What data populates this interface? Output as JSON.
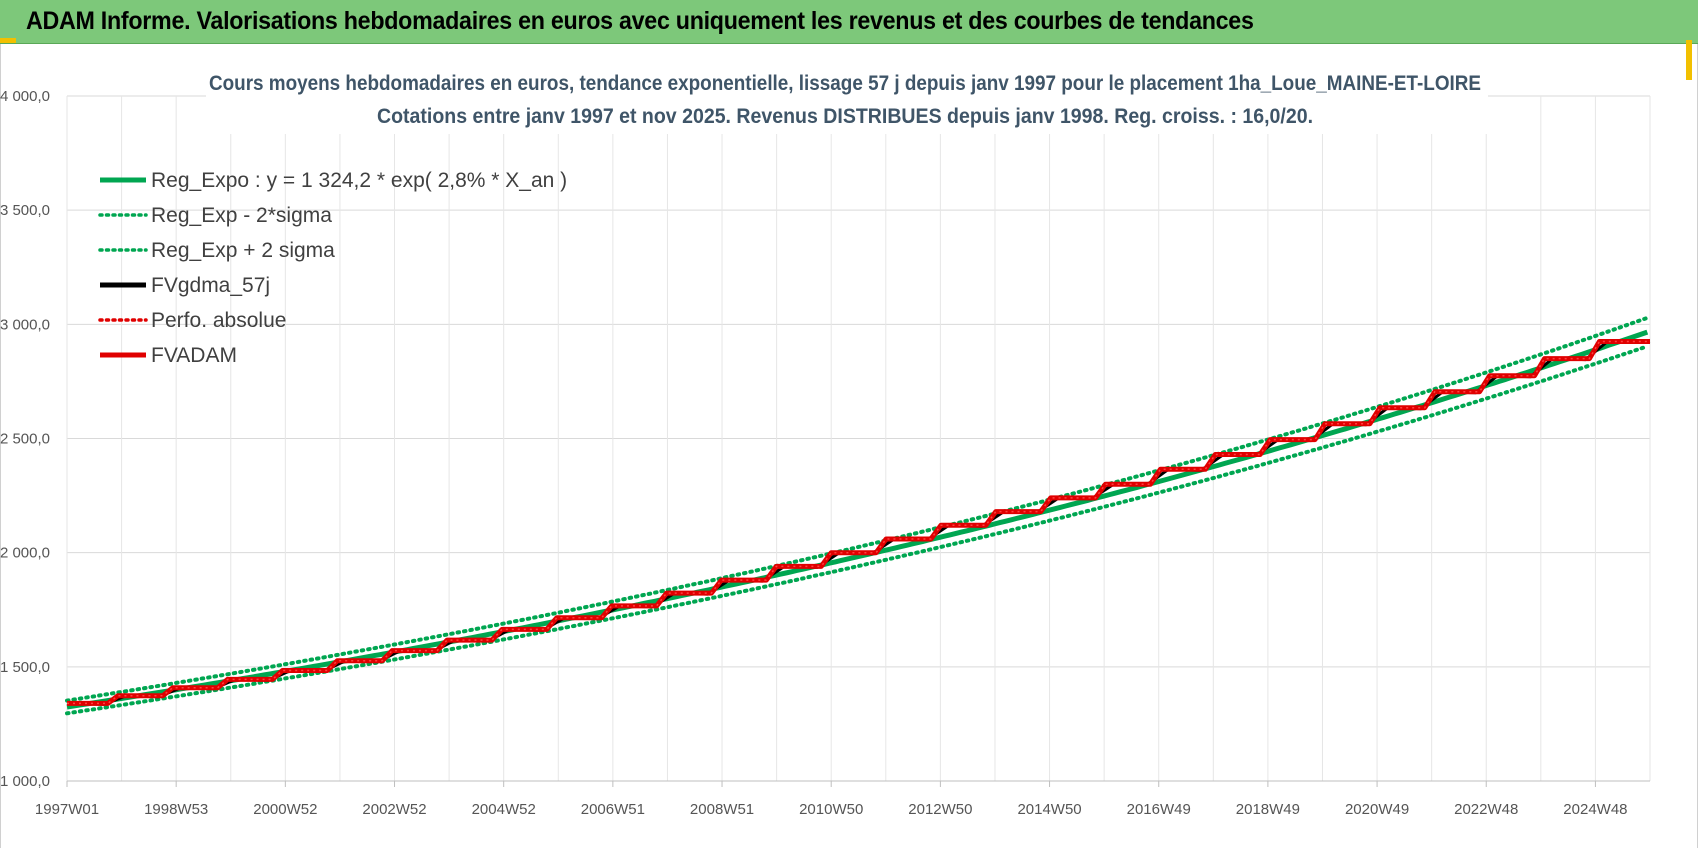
{
  "header": {
    "title": "ADAM Informe. Valorisations hebdomadaires en euros avec uniquement les revenus et des courbes de tendances"
  },
  "chart_data": {
    "type": "line",
    "title_line1": "Cours moyens hebdomadaires en euros, tendance exponentielle, lissage 57 j depuis janv 1997  pour le placement 1ha_Loue_MAINE-ET-LOIRE",
    "title_line2": "Cotations entre janv 1997 et nov 2025. Revenus  DISTRIBUES depuis janv 1998.  Reg. croiss. : 16,0/20.",
    "x_tick_labels": [
      "1997W01",
      "1998W53",
      "2000W52",
      "2002W52",
      "2004W52",
      "2006W51",
      "2008W51",
      "2010W50",
      "2012W50",
      "2014W50",
      "2016W49",
      "2018W49",
      "2020W49",
      "2022W48",
      "2024W48"
    ],
    "x_range_years": [
      1997.0,
      2025.85
    ],
    "ylim": [
      1000,
      4000
    ],
    "y_ticks": [
      1000,
      1500,
      2000,
      2500,
      3000,
      3500,
      4000
    ],
    "y_tick_labels": [
      "1 000,0",
      "1 500,0",
      "2 000,0",
      "2 500,0",
      "3 000,0",
      "3 500,0",
      "4 000,0"
    ],
    "grid": true,
    "legend_position": "top-left",
    "legend": [
      {
        "label": "Reg_Expo : y = 1 324,2 * exp( 2,8% *  X_an )",
        "color": "#00a651",
        "style": "solid"
      },
      {
        "label": "Reg_Exp - 2*sigma",
        "color": "#00a651",
        "style": "dotted"
      },
      {
        "label": "Reg_Exp + 2 sigma",
        "color": "#00a651",
        "style": "dotted"
      },
      {
        "label": "FVgdma_57j",
        "color": "#000000",
        "style": "solid"
      },
      {
        "label": "Perfo. absolue",
        "color": "#e00000",
        "style": "dotted"
      },
      {
        "label": "FVADAM",
        "color": "#e00000",
        "style": "solid"
      }
    ],
    "regression": {
      "a": 1324.2,
      "rate": 0.028
    },
    "sigma_band_factor": 0.021,
    "fvadam_steps": [
      {
        "year": 1997.0,
        "value": 1340
      },
      {
        "year": 1998.0,
        "value": 1373
      },
      {
        "year": 1999.0,
        "value": 1408
      },
      {
        "year": 2000.0,
        "value": 1445
      },
      {
        "year": 2001.0,
        "value": 1484
      },
      {
        "year": 2002.0,
        "value": 1527
      },
      {
        "year": 2003.0,
        "value": 1571
      },
      {
        "year": 2004.0,
        "value": 1617
      },
      {
        "year": 2005.0,
        "value": 1664
      },
      {
        "year": 2006.0,
        "value": 1715
      },
      {
        "year": 2007.0,
        "value": 1767
      },
      {
        "year": 2008.0,
        "value": 1823
      },
      {
        "year": 2009.0,
        "value": 1880
      },
      {
        "year": 2010.0,
        "value": 1940
      },
      {
        "year": 2011.0,
        "value": 2000
      },
      {
        "year": 2012.0,
        "value": 2060
      },
      {
        "year": 2013.0,
        "value": 2120
      },
      {
        "year": 2014.0,
        "value": 2180
      },
      {
        "year": 2015.0,
        "value": 2240
      },
      {
        "year": 2016.0,
        "value": 2300
      },
      {
        "year": 2017.0,
        "value": 2365
      },
      {
        "year": 2018.0,
        "value": 2430
      },
      {
        "year": 2019.0,
        "value": 2495
      },
      {
        "year": 2020.0,
        "value": 2565
      },
      {
        "year": 2021.0,
        "value": 2635
      },
      {
        "year": 2022.0,
        "value": 2705
      },
      {
        "year": 2023.0,
        "value": 2775
      },
      {
        "year": 2024.0,
        "value": 2850
      },
      {
        "year": 2025.0,
        "value": 2925
      }
    ]
  }
}
